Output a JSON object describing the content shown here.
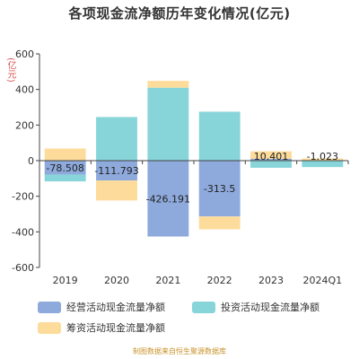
{
  "chart_data": {
    "type": "bar",
    "stacked": true,
    "title": "各项现金流净额历年变化情况(亿元)",
    "ylabel": "(亿元)",
    "categories": [
      "2019",
      "2020",
      "2021",
      "2022",
      "2023",
      "2024Q1"
    ],
    "ylim": [
      -600,
      600
    ],
    "yticks": [
      -600,
      -400,
      -200,
      0,
      200,
      400,
      600
    ],
    "series": [
      {
        "name": "经营活动现金流量净额",
        "color": "#8eaadc",
        "values": [
          -78.508,
          -111.793,
          -426.191,
          -313.5,
          10.401,
          -1.023
        ],
        "labels": [
          "-78.508",
          "-111.793",
          "-426.191",
          "-313.5",
          "10.401",
          "-1.023"
        ]
      },
      {
        "name": "投资活动现金流量净额",
        "color": "#87d5d9",
        "values": [
          -38,
          245,
          410,
          275,
          -40,
          -35
        ]
      },
      {
        "name": "筹资活动现金流量净额",
        "color": "#fddb9a",
        "values": [
          68,
          -112,
          38,
          -72,
          42,
          12
        ]
      }
    ],
    "grid": false,
    "legend_position": "bottom"
  },
  "source_note": "制图数据来自恒生聚源数据库"
}
